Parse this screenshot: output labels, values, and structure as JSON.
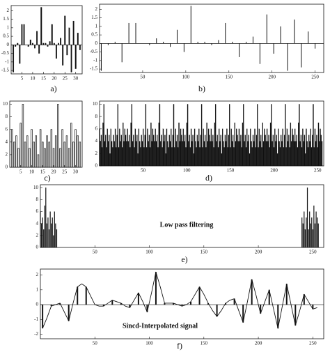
{
  "chart_data": [
    {
      "type": "bar",
      "label": "a)",
      "x": [
        1,
        2,
        3,
        4,
        5,
        6,
        7,
        8,
        9,
        10,
        11,
        12,
        13,
        14,
        15,
        16,
        17,
        18,
        19,
        20,
        21,
        22,
        23,
        24,
        25,
        26,
        27,
        28,
        29,
        30,
        31,
        32
      ],
      "values": [
        -1.6,
        -0.1,
        0.1,
        -1.1,
        1.2,
        1.2,
        0.0,
        -0.1,
        0.3,
        0.1,
        -0.2,
        0.8,
        -0.5,
        2.2,
        0.1,
        0.1,
        -0.1,
        0.2,
        1.2,
        0.1,
        -0.8,
        0.1,
        0.4,
        -1.2,
        1.7,
        -0.6,
        1.0,
        -1.6,
        1.4,
        -1.4,
        0.7,
        -0.3
      ],
      "color": "#111",
      "xlim": [
        0,
        33
      ],
      "ylim": [
        -1.7,
        2.3
      ],
      "xticks": [
        5,
        10,
        15,
        20,
        25,
        30
      ],
      "yticks": [
        -1.5,
        -1,
        -0.5,
        0,
        0.5,
        1,
        1.5,
        2
      ]
    },
    {
      "type": "stem",
      "label": "b)",
      "x": [
        2,
        10,
        18,
        26,
        34,
        42,
        50,
        58,
        66,
        74,
        82,
        90,
        98,
        106,
        114,
        122,
        130,
        138,
        146,
        154,
        162,
        170,
        178,
        186,
        194,
        202,
        210,
        218,
        226,
        234,
        242,
        250
      ],
      "values": [
        -1.6,
        -0.1,
        0.1,
        -1.1,
        1.2,
        1.2,
        0.0,
        -0.1,
        0.3,
        0.1,
        -0.2,
        0.8,
        -0.5,
        2.2,
        0.1,
        0.1,
        -0.1,
        0.2,
        1.2,
        0.1,
        -0.8,
        0.1,
        0.4,
        -1.2,
        1.7,
        -0.6,
        1.0,
        -1.6,
        1.4,
        -1.4,
        0.7,
        -0.3
      ],
      "color": "#111",
      "xlim": [
        0,
        260
      ],
      "ylim": [
        -1.7,
        2.3
      ],
      "xticks": [
        50,
        100,
        150,
        200,
        250
      ],
      "yticks": [
        -1.5,
        -1,
        -0.5,
        0,
        0.5,
        1,
        1.5,
        2
      ]
    },
    {
      "type": "bar",
      "label": "c)",
      "hollow": true,
      "x": [
        1,
        2,
        3,
        4,
        5,
        6,
        7,
        8,
        9,
        10,
        11,
        12,
        13,
        14,
        15,
        16,
        17,
        18,
        19,
        20,
        21,
        22,
        23,
        24,
        25,
        26,
        27,
        28,
        29,
        30,
        31,
        32
      ],
      "values": [
        6,
        4,
        5,
        3,
        7,
        10,
        4,
        5,
        3,
        6,
        4,
        5,
        2,
        6,
        4,
        3,
        5,
        4,
        6,
        3,
        5,
        10,
        3,
        6,
        4,
        5,
        3,
        7,
        4,
        6,
        5,
        4
      ],
      "color": "#111",
      "xlim": [
        0,
        33
      ],
      "ylim": [
        0,
        10.5
      ],
      "xticks": [
        5,
        10,
        15,
        20,
        25,
        30
      ],
      "yticks": [
        0,
        2,
        4,
        6,
        8,
        10
      ]
    },
    {
      "type": "bar",
      "label": "d)",
      "values": [
        6,
        4,
        5,
        3,
        7,
        10,
        4,
        5,
        3,
        6,
        4,
        5,
        2,
        6,
        4,
        3,
        5,
        4,
        6,
        3,
        5,
        10,
        3,
        6,
        4,
        5,
        3,
        7,
        4,
        6,
        5,
        4,
        6,
        4,
        5,
        3,
        7,
        10,
        4,
        5,
        3,
        6,
        4,
        5,
        2,
        6,
        4,
        3,
        5,
        4,
        6,
        3,
        5,
        10,
        3,
        6,
        4,
        5,
        3,
        7,
        4,
        6,
        5,
        4,
        6,
        4,
        5,
        3,
        7,
        10,
        4,
        5,
        3,
        6,
        4,
        5,
        2,
        6,
        4,
        3,
        5,
        4,
        6,
        3,
        5,
        10,
        3,
        6,
        4,
        5,
        3,
        7,
        4,
        6,
        5,
        4,
        6,
        4,
        5,
        3,
        7,
        10,
        4,
        5,
        3,
        6,
        4,
        5,
        2,
        6,
        4,
        3,
        5,
        4,
        6,
        3,
        5,
        10,
        3,
        6,
        4,
        5,
        3,
        7,
        4,
        6,
        5,
        4,
        6,
        4,
        5,
        3,
        7,
        10,
        4,
        5,
        3,
        6,
        4,
        5,
        2,
        6,
        4,
        3,
        5,
        4,
        6,
        3,
        5,
        10,
        3,
        6,
        4,
        5,
        3,
        7,
        4,
        6,
        5,
        4,
        6,
        4,
        5,
        3,
        7,
        10,
        4,
        5,
        3,
        6,
        4,
        5,
        2,
        6,
        4,
        3,
        5,
        4,
        6,
        3,
        5,
        10,
        3,
        6,
        4,
        5,
        3,
        7,
        4,
        6,
        5,
        4,
        6,
        4,
        5,
        3,
        7,
        10,
        4,
        5,
        3,
        6,
        4,
        5,
        2,
        6,
        4,
        3,
        5,
        4,
        6,
        3,
        5,
        10,
        3,
        6,
        4,
        5,
        3,
        7,
        4,
        6,
        5,
        4,
        6,
        4,
        5,
        3,
        7,
        10,
        4,
        5,
        3,
        6,
        4,
        5,
        2,
        6,
        4,
        3,
        5,
        4,
        6,
        3,
        5,
        10,
        3,
        6,
        4,
        5,
        3,
        7,
        4,
        6,
        5,
        4
      ],
      "color": "#111",
      "xlim": [
        0,
        257
      ],
      "ylim": [
        0,
        10.5
      ],
      "xticks": [
        50,
        100,
        150,
        200,
        250
      ],
      "yticks": [
        0,
        2,
        4,
        6,
        8,
        10
      ]
    },
    {
      "type": "bar",
      "label": "e)",
      "annotation": "Low pass filtering",
      "x": [
        0,
        1,
        2,
        3,
        4,
        5,
        6,
        7,
        8,
        9,
        10,
        11,
        12,
        13,
        14,
        15,
        240,
        241,
        242,
        243,
        244,
        245,
        246,
        247,
        248,
        249,
        250,
        251,
        252,
        253,
        254,
        255
      ],
      "values": [
        6,
        4,
        5,
        3,
        7,
        10,
        4,
        5,
        3,
        6,
        4,
        5,
        2,
        6,
        4,
        3,
        5,
        4,
        6,
        3,
        5,
        10,
        3,
        6,
        4,
        5,
        3,
        7,
        4,
        6,
        5,
        4
      ],
      "color": "#111",
      "xlim": [
        0,
        260
      ],
      "ylim": [
        0,
        10.5
      ],
      "xticks": [
        50,
        100,
        150,
        200,
        250
      ],
      "yticks": [
        0,
        2,
        4,
        6,
        8,
        10
      ]
    },
    {
      "type": "line",
      "label": "f)",
      "annotation": "Sincd-Interpolated signal",
      "series": [
        {
          "style": "line",
          "color": "#111",
          "x": [
            2,
            6,
            10,
            14,
            18,
            22,
            26,
            30,
            34,
            38,
            42,
            46,
            50,
            54,
            58,
            62,
            66,
            70,
            74,
            78,
            82,
            86,
            90,
            94,
            98,
            102,
            106,
            110,
            114,
            118,
            122,
            126,
            130,
            134,
            138,
            142,
            146,
            150,
            154,
            158,
            162,
            166,
            170,
            174,
            178,
            182,
            186,
            190,
            194,
            198,
            202,
            206,
            210,
            214,
            218,
            222,
            226,
            230,
            234,
            238,
            242,
            246,
            250,
            254
          ],
          "values": [
            -1.6,
            -0.9,
            -0.1,
            0.0,
            0.1,
            -0.5,
            -1.1,
            0.1,
            1.2,
            1.4,
            1.2,
            0.6,
            0.0,
            -0.1,
            -0.1,
            0.1,
            0.3,
            0.2,
            0.1,
            -0.1,
            -0.2,
            0.3,
            0.8,
            0.2,
            -0.5,
            0.8,
            2.2,
            1.2,
            0.1,
            0.1,
            0.1,
            0.0,
            -0.1,
            0.0,
            0.2,
            0.7,
            1.2,
            0.7,
            0.1,
            -0.4,
            -0.8,
            -0.4,
            0.1,
            0.3,
            0.4,
            -0.4,
            -1.2,
            0.2,
            1.7,
            0.6,
            -0.6,
            0.2,
            1.0,
            -0.3,
            -1.6,
            -0.1,
            1.4,
            0.0,
            -1.4,
            -0.4,
            0.7,
            0.2,
            -0.3,
            -0.2
          ]
        },
        {
          "style": "stem",
          "color": "#111",
          "x": [
            2,
            10,
            18,
            26,
            34,
            42,
            50,
            58,
            66,
            74,
            82,
            90,
            98,
            106,
            114,
            122,
            130,
            138,
            146,
            154,
            162,
            170,
            178,
            186,
            194,
            202,
            210,
            218,
            226,
            234,
            242,
            250
          ],
          "values": [
            -1.6,
            -0.1,
            0.1,
            -1.1,
            1.2,
            1.2,
            0.0,
            -0.1,
            0.3,
            0.1,
            -0.2,
            0.8,
            -0.5,
            2.2,
            0.1,
            0.1,
            -0.1,
            0.2,
            1.2,
            0.1,
            -0.8,
            0.1,
            0.4,
            -1.2,
            1.7,
            -0.6,
            1.0,
            -1.6,
            1.4,
            -1.4,
            0.7,
            -0.3
          ]
        }
      ],
      "xlim": [
        0,
        260
      ],
      "ylim": [
        -2.3,
        2.4
      ],
      "xticks": [
        50,
        100,
        150,
        200,
        250
      ],
      "yticks": [
        -2,
        -1,
        0,
        1,
        2
      ]
    }
  ]
}
